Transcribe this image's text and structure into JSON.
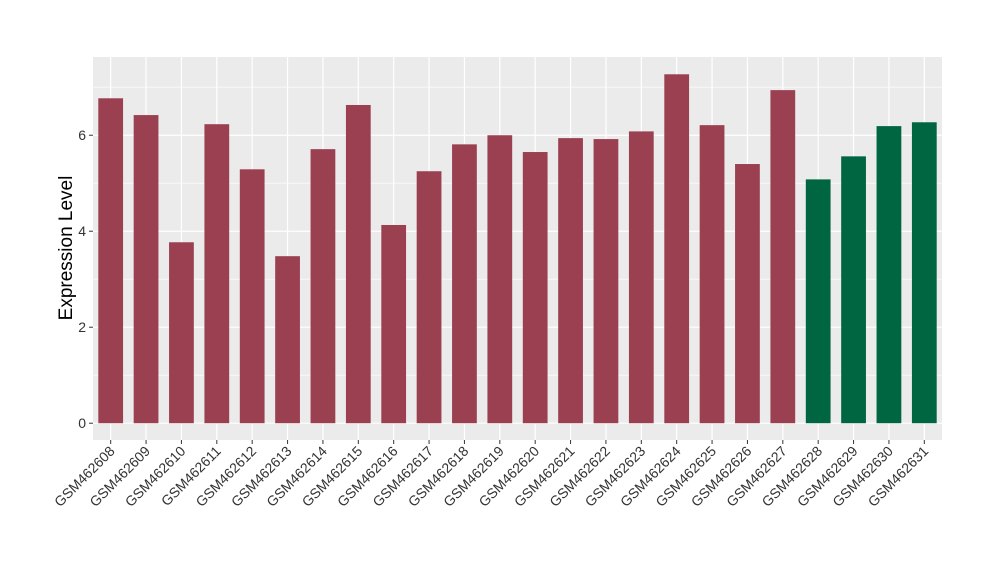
{
  "chart_data": {
    "type": "bar",
    "y_label": "Expression Level",
    "categories": [
      "GSM462608",
      "GSM462609",
      "GSM462610",
      "GSM462611",
      "GSM462612",
      "GSM462613",
      "GSM462614",
      "GSM462615",
      "GSM462616",
      "GSM462617",
      "GSM462618",
      "GSM462619",
      "GSM462620",
      "GSM462621",
      "GSM462622",
      "GSM462623",
      "GSM462624",
      "GSM462625",
      "GSM462626",
      "GSM462627",
      "GSM462628",
      "GSM462629",
      "GSM462630",
      "GSM462631"
    ],
    "values": [
      6.77,
      6.42,
      3.77,
      6.23,
      5.29,
      3.48,
      5.71,
      6.63,
      4.13,
      5.25,
      5.81,
      6.0,
      5.65,
      5.94,
      5.92,
      6.08,
      7.27,
      6.21,
      5.4,
      6.94,
      5.08,
      5.56,
      6.19,
      6.27
    ],
    "colors": [
      "#9a4050",
      "#9a4050",
      "#9a4050",
      "#9a4050",
      "#9a4050",
      "#9a4050",
      "#9a4050",
      "#9a4050",
      "#9a4050",
      "#9a4050",
      "#9a4050",
      "#9a4050",
      "#9a4050",
      "#9a4050",
      "#9a4050",
      "#9a4050",
      "#9a4050",
      "#9a4050",
      "#9a4050",
      "#9a4050",
      "#006642",
      "#006642",
      "#006642",
      "#006642"
    ],
    "ylim": [
      -0.35,
      7.63
    ],
    "yticks": [
      0,
      2,
      4,
      6
    ],
    "grid": true
  }
}
